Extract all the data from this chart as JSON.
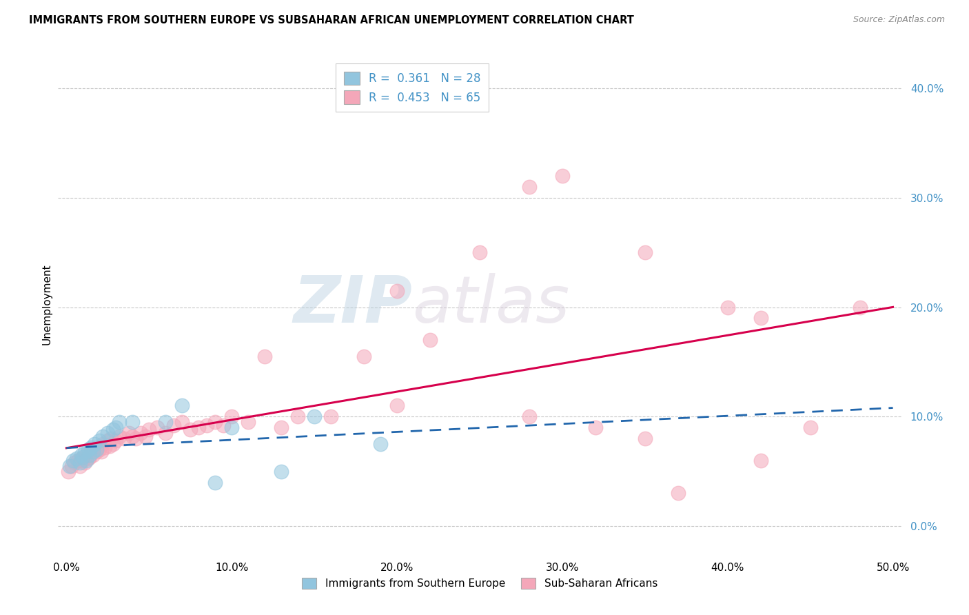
{
  "title": "IMMIGRANTS FROM SOUTHERN EUROPE VS SUBSAHARAN AFRICAN UNEMPLOYMENT CORRELATION CHART",
  "source": "Source: ZipAtlas.com",
  "xlabel_ticks": [
    "0.0%",
    "10.0%",
    "20.0%",
    "30.0%",
    "40.0%",
    "50.0%"
  ],
  "xlabel_vals": [
    0.0,
    0.1,
    0.2,
    0.3,
    0.4,
    0.5
  ],
  "ylabel": "Unemployment",
  "ylabel_ticks": [
    "0.0%",
    "10.0%",
    "20.0%",
    "30.0%",
    "40.0%"
  ],
  "ylabel_vals": [
    0.0,
    0.1,
    0.2,
    0.3,
    0.4
  ],
  "xlim": [
    -0.005,
    0.505
  ],
  "ylim": [
    -0.025,
    0.43
  ],
  "blue_color": "#92c5de",
  "pink_color": "#f4a7b9",
  "blue_line_color": "#2166ac",
  "pink_line_color": "#d6004c",
  "R_blue": 0.361,
  "N_blue": 28,
  "R_pink": 0.453,
  "N_pink": 65,
  "legend_label_blue": "Immigrants from Southern Europe",
  "legend_label_pink": "Sub-Saharan Africans",
  "blue_scatter_x": [
    0.002,
    0.004,
    0.006,
    0.008,
    0.009,
    0.01,
    0.011,
    0.012,
    0.013,
    0.014,
    0.015,
    0.016,
    0.017,
    0.018,
    0.02,
    0.022,
    0.025,
    0.028,
    0.03,
    0.032,
    0.04,
    0.06,
    0.07,
    0.09,
    0.1,
    0.13,
    0.15,
    0.19
  ],
  "blue_scatter_y": [
    0.055,
    0.06,
    0.062,
    0.058,
    0.065,
    0.063,
    0.068,
    0.06,
    0.07,
    0.065,
    0.072,
    0.068,
    0.075,
    0.07,
    0.078,
    0.082,
    0.085,
    0.088,
    0.09,
    0.095,
    0.095,
    0.095,
    0.11,
    0.04,
    0.09,
    0.05,
    0.1,
    0.075
  ],
  "pink_scatter_x": [
    0.001,
    0.003,
    0.005,
    0.007,
    0.008,
    0.009,
    0.01,
    0.011,
    0.012,
    0.013,
    0.014,
    0.015,
    0.016,
    0.017,
    0.018,
    0.019,
    0.02,
    0.021,
    0.022,
    0.023,
    0.025,
    0.026,
    0.027,
    0.028,
    0.03,
    0.032,
    0.035,
    0.038,
    0.04,
    0.042,
    0.045,
    0.048,
    0.05,
    0.055,
    0.06,
    0.065,
    0.07,
    0.075,
    0.08,
    0.085,
    0.09,
    0.095,
    0.1,
    0.11,
    0.12,
    0.13,
    0.14,
    0.16,
    0.18,
    0.2,
    0.22,
    0.25,
    0.28,
    0.3,
    0.32,
    0.35,
    0.37,
    0.4,
    0.42,
    0.45,
    0.2,
    0.28,
    0.35,
    0.42,
    0.48
  ],
  "pink_scatter_y": [
    0.05,
    0.055,
    0.058,
    0.06,
    0.055,
    0.062,
    0.06,
    0.058,
    0.065,
    0.062,
    0.063,
    0.068,
    0.065,
    0.07,
    0.068,
    0.072,
    0.07,
    0.068,
    0.075,
    0.072,
    0.078,
    0.073,
    0.08,
    0.075,
    0.078,
    0.082,
    0.08,
    0.085,
    0.082,
    0.08,
    0.085,
    0.082,
    0.088,
    0.09,
    0.085,
    0.092,
    0.095,
    0.088,
    0.09,
    0.092,
    0.095,
    0.092,
    0.1,
    0.095,
    0.155,
    0.09,
    0.1,
    0.1,
    0.155,
    0.11,
    0.17,
    0.25,
    0.1,
    0.32,
    0.09,
    0.08,
    0.03,
    0.2,
    0.06,
    0.09,
    0.215,
    0.31,
    0.25,
    0.19,
    0.2
  ],
  "watermark_zip": "ZIP",
  "watermark_atlas": "atlas",
  "background_color": "#ffffff",
  "grid_color": "#c8c8c8",
  "tick_color": "#4292c6",
  "legend_text_color": "#4292c6"
}
